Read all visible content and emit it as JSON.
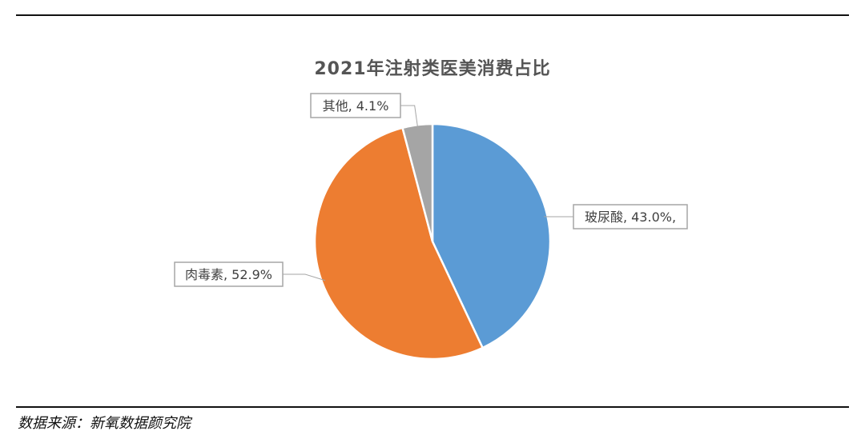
{
  "chart_data": {
    "type": "pie",
    "title": "2021年注射类医美消费占比",
    "slices": [
      {
        "name": "玻尿酸",
        "value": 43.0,
        "label": "玻尿酸, 43.0%,",
        "color": "#5B9BD5"
      },
      {
        "name": "肉毒素",
        "value": 52.9,
        "label": "肉毒素, 52.9%",
        "color": "#ED7D31"
      },
      {
        "name": "其他",
        "value": 4.1,
        "label": "其他, 4.1%",
        "color": "#A5A5A5"
      }
    ],
    "legend": "none"
  },
  "footer": {
    "source": "数据来源：新氧数据颜究院"
  }
}
